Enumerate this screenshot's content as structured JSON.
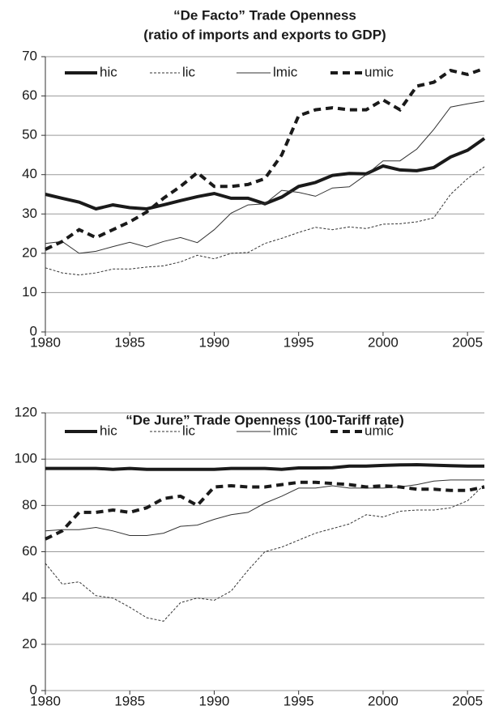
{
  "chart_data": [
    {
      "type": "line",
      "title": "“De Facto” Trade Openness",
      "subtitle": "(ratio of imports and exports to GDP)",
      "x": [
        1980,
        1981,
        1982,
        1983,
        1984,
        1985,
        1986,
        1987,
        1988,
        1989,
        1990,
        1991,
        1992,
        1993,
        1994,
        1995,
        1996,
        1997,
        1998,
        1999,
        2000,
        2001,
        2002,
        2003,
        2004,
        2005,
        2006
      ],
      "xlim": [
        1980,
        2006
      ],
      "xticks": [
        1980,
        1985,
        1990,
        1995,
        2000,
        2005
      ],
      "ylim": [
        0,
        70
      ],
      "yticks": [
        0,
        10,
        20,
        30,
        40,
        50,
        60,
        70
      ],
      "grid": true,
      "legend": "top",
      "series": [
        {
          "name": "hic",
          "color": "#1a1a1a",
          "values": [
            35,
            34,
            33,
            31.3,
            32.3,
            31.6,
            31.3,
            32.3,
            33.4,
            34.4,
            35.2,
            34,
            34,
            32.6,
            34.3,
            37,
            38,
            39.8,
            40.3,
            40.2,
            42.2,
            41.2,
            41,
            41.8,
            44.5,
            46.2,
            49.2
          ]
        },
        {
          "name": "lic",
          "color": "#333333",
          "values": [
            16.3,
            15,
            14.5,
            15,
            16,
            16,
            16.5,
            16.8,
            17.8,
            19.5,
            18.6,
            20,
            20.2,
            22.5,
            23.8,
            25.3,
            26.6,
            26,
            26.7,
            26.3,
            27.4,
            27.5,
            28,
            29,
            35,
            39,
            42
          ]
        },
        {
          "name": "lmic",
          "color": "#333333",
          "values": [
            22.5,
            23,
            20,
            20.5,
            21.7,
            22.8,
            21.6,
            23,
            24,
            22.7,
            26,
            30.2,
            32.3,
            32.6,
            36,
            35.5,
            34.5,
            36.6,
            36.9,
            40,
            43.5,
            43.5,
            46.5,
            51.5,
            57.2,
            58,
            58.7
          ]
        },
        {
          "name": "umic",
          "color": "#1a1a1a",
          "values": [
            21,
            23,
            26,
            24,
            26,
            28,
            30.5,
            34,
            37,
            40.5,
            37,
            37,
            37.5,
            39,
            45,
            55,
            56.5,
            57,
            56.5,
            56.5,
            59,
            56.5,
            62.5,
            63.5,
            66.5,
            65.5,
            67
          ]
        }
      ]
    },
    {
      "type": "line",
      "title": "“De Jure” Trade Openness (100-Tariff rate)",
      "x": [
        1980,
        1981,
        1982,
        1983,
        1984,
        1985,
        1986,
        1987,
        1988,
        1989,
        1990,
        1991,
        1992,
        1993,
        1994,
        1995,
        1996,
        1997,
        1998,
        1999,
        2000,
        2001,
        2002,
        2003,
        2004,
        2005,
        2006
      ],
      "xlim": [
        1980,
        2006
      ],
      "xticks": [
        1980,
        1985,
        1990,
        1995,
        2000,
        2005
      ],
      "ylim": [
        0,
        120
      ],
      "yticks": [
        0,
        20,
        40,
        60,
        80,
        100,
        120
      ],
      "grid": true,
      "legend": "top",
      "series": [
        {
          "name": "hic",
          "color": "#1a1a1a",
          "values": [
            96,
            96,
            96,
            96,
            95.6,
            96,
            95.6,
            95.6,
            95.6,
            95.6,
            95.6,
            96,
            96,
            96,
            95.6,
            96.2,
            96.2,
            96.3,
            97,
            97,
            97.3,
            97.5,
            97.6,
            97.4,
            97.2,
            97,
            97
          ]
        },
        {
          "name": "lic",
          "color": "#333333",
          "values": [
            55,
            46,
            47,
            41,
            40,
            36,
            31.5,
            30,
            38,
            40,
            39,
            43,
            52,
            60,
            62,
            65,
            68,
            70,
            72,
            76,
            75,
            77.5,
            78,
            78,
            79,
            82,
            89
          ]
        },
        {
          "name": "lmic",
          "color": "#333333",
          "values": [
            69,
            69.5,
            69.5,
            70.5,
            69,
            67,
            67,
            68,
            71,
            71.5,
            74,
            76,
            77,
            81,
            84,
            87.5,
            87.5,
            88.5,
            87.5,
            87.5,
            87.5,
            88,
            89,
            90.5,
            91,
            91,
            91
          ]
        },
        {
          "name": "umic",
          "color": "#1a1a1a",
          "values": [
            65.5,
            69,
            77,
            77,
            78,
            77,
            79,
            83,
            84,
            80,
            88,
            88.5,
            88,
            88,
            89,
            90,
            90,
            89.5,
            89,
            88,
            88.5,
            88,
            87,
            87,
            86.5,
            86.5,
            88
          ]
        }
      ]
    }
  ]
}
